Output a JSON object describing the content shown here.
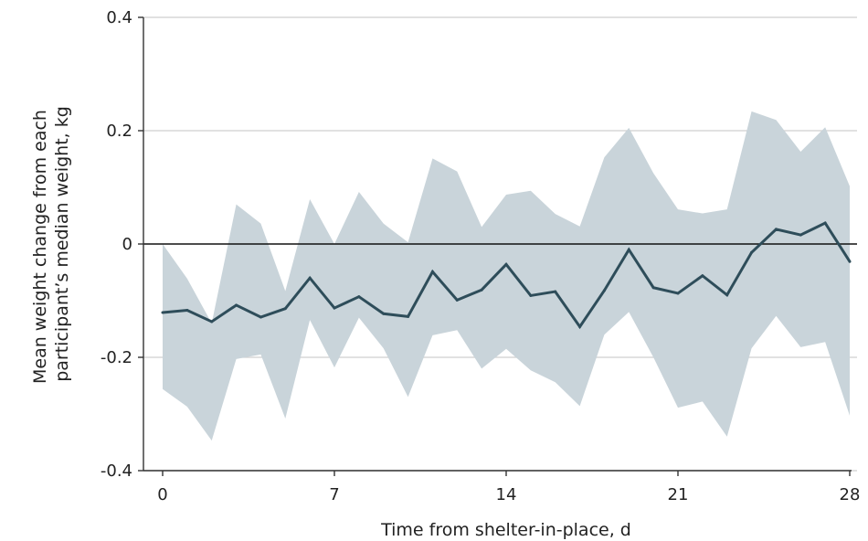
{
  "chart_data": {
    "type": "line",
    "title": "",
    "xlabel": "Time from shelter-in-place, d",
    "ylabel_line1": "Mean weight change from each",
    "ylabel_line2": "participant’s median weight, kg",
    "xlim": [
      0,
      28
    ],
    "ylim": [
      -0.4,
      0.4
    ],
    "xticks": [
      0,
      7,
      14,
      21,
      28
    ],
    "yticks": [
      -0.4,
      -0.2,
      0,
      0.2,
      0.4
    ],
    "xtick_labels": [
      "0",
      "7",
      "14",
      "21",
      "28"
    ],
    "ytick_labels": [
      "-0.4",
      "-0.2",
      "0",
      "0.2",
      "0.4"
    ],
    "grid": "horizontal",
    "reference_line_y": 0,
    "line_color": "#2e4d5a",
    "band_color": "#c9d4da",
    "x": [
      0,
      1,
      2,
      3,
      4,
      5,
      6,
      7,
      8,
      9,
      10,
      11,
      12,
      13,
      14,
      15,
      16,
      17,
      18,
      19,
      20,
      21,
      22,
      23,
      24,
      25,
      26,
      27,
      28
    ],
    "series": [
      {
        "values": [
          -0.121,
          -0.117,
          -0.137,
          -0.108,
          -0.129,
          -0.114,
          -0.06,
          -0.113,
          -0.093,
          -0.123,
          -0.128,
          -0.049,
          -0.099,
          -0.081,
          -0.036,
          -0.091,
          -0.084,
          -0.146,
          -0.082,
          -0.01,
          -0.077,
          -0.087,
          -0.056,
          -0.09,
          -0.015,
          0.026,
          0.016,
          0.037,
          -0.031
        ],
        "ci_lower": [
          -0.256,
          -0.287,
          -0.347,
          -0.203,
          -0.195,
          -0.308,
          -0.134,
          -0.218,
          -0.13,
          -0.184,
          -0.27,
          -0.161,
          -0.152,
          -0.22,
          -0.185,
          -0.223,
          -0.244,
          -0.286,
          -0.16,
          -0.12,
          -0.2,
          -0.289,
          -0.278,
          -0.34,
          -0.184,
          -0.127,
          -0.182,
          -0.173,
          -0.303
        ],
        "ci_upper": [
          0.0,
          -0.061,
          -0.14,
          0.07,
          0.036,
          -0.083,
          0.079,
          0.0,
          0.092,
          0.036,
          0.003,
          0.151,
          0.128,
          0.03,
          0.087,
          0.094,
          0.053,
          0.031,
          0.153,
          0.205,
          0.125,
          0.061,
          0.054,
          0.061,
          0.234,
          0.219,
          0.163,
          0.206,
          0.102
        ]
      }
    ]
  }
}
